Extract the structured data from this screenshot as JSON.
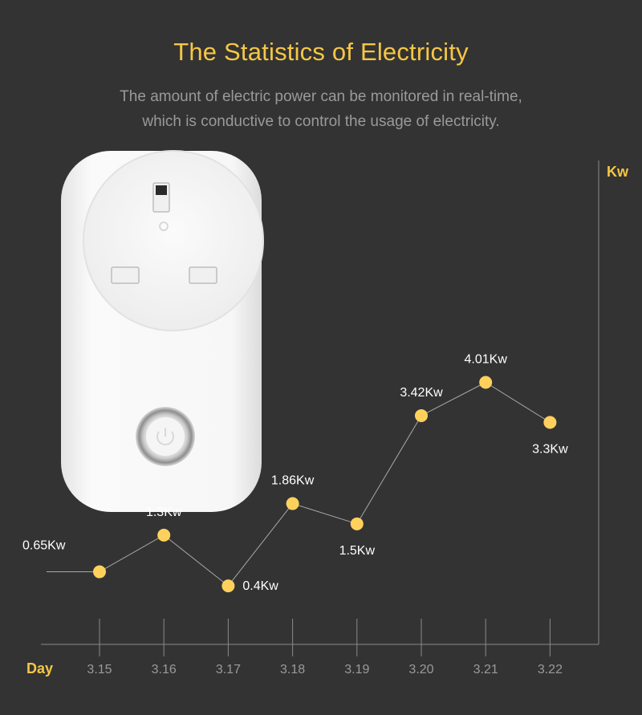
{
  "header": {
    "title": "The Statistics of Electricity",
    "subtitle_line1": "The amount of electric power can be monitored in real-time,",
    "subtitle_line2": "which is conductive to control the usage of electricity."
  },
  "colors": {
    "background": "#333333",
    "accent": "#f6c744",
    "point": "#ffd15c",
    "axis": "#8a8a8a",
    "tick_label": "#9a9a9a",
    "data_label": "#ffffff",
    "plug_body": "#f4f4f4"
  },
  "product_image": {
    "icon": "smart-plug-uk-socket",
    "indicator": "power-button-ring"
  },
  "chart_data": {
    "type": "line",
    "x_axis_label": "Day",
    "y_axis_label": "Kw",
    "categories": [
      "3.15",
      "3.16",
      "3.17",
      "3.18",
      "3.19",
      "3.20",
      "3.21",
      "3.22"
    ],
    "values": [
      0.65,
      1.3,
      0.4,
      1.86,
      1.5,
      3.42,
      4.01,
      3.3
    ],
    "data_labels": [
      "0.65Kw",
      "1.3Kw",
      "0.4Kw",
      "1.86Kw",
      "1.5Kw",
      "3.42Kw",
      "4.01Kw",
      "3.3Kw"
    ],
    "grid": false,
    "legend": "none"
  }
}
